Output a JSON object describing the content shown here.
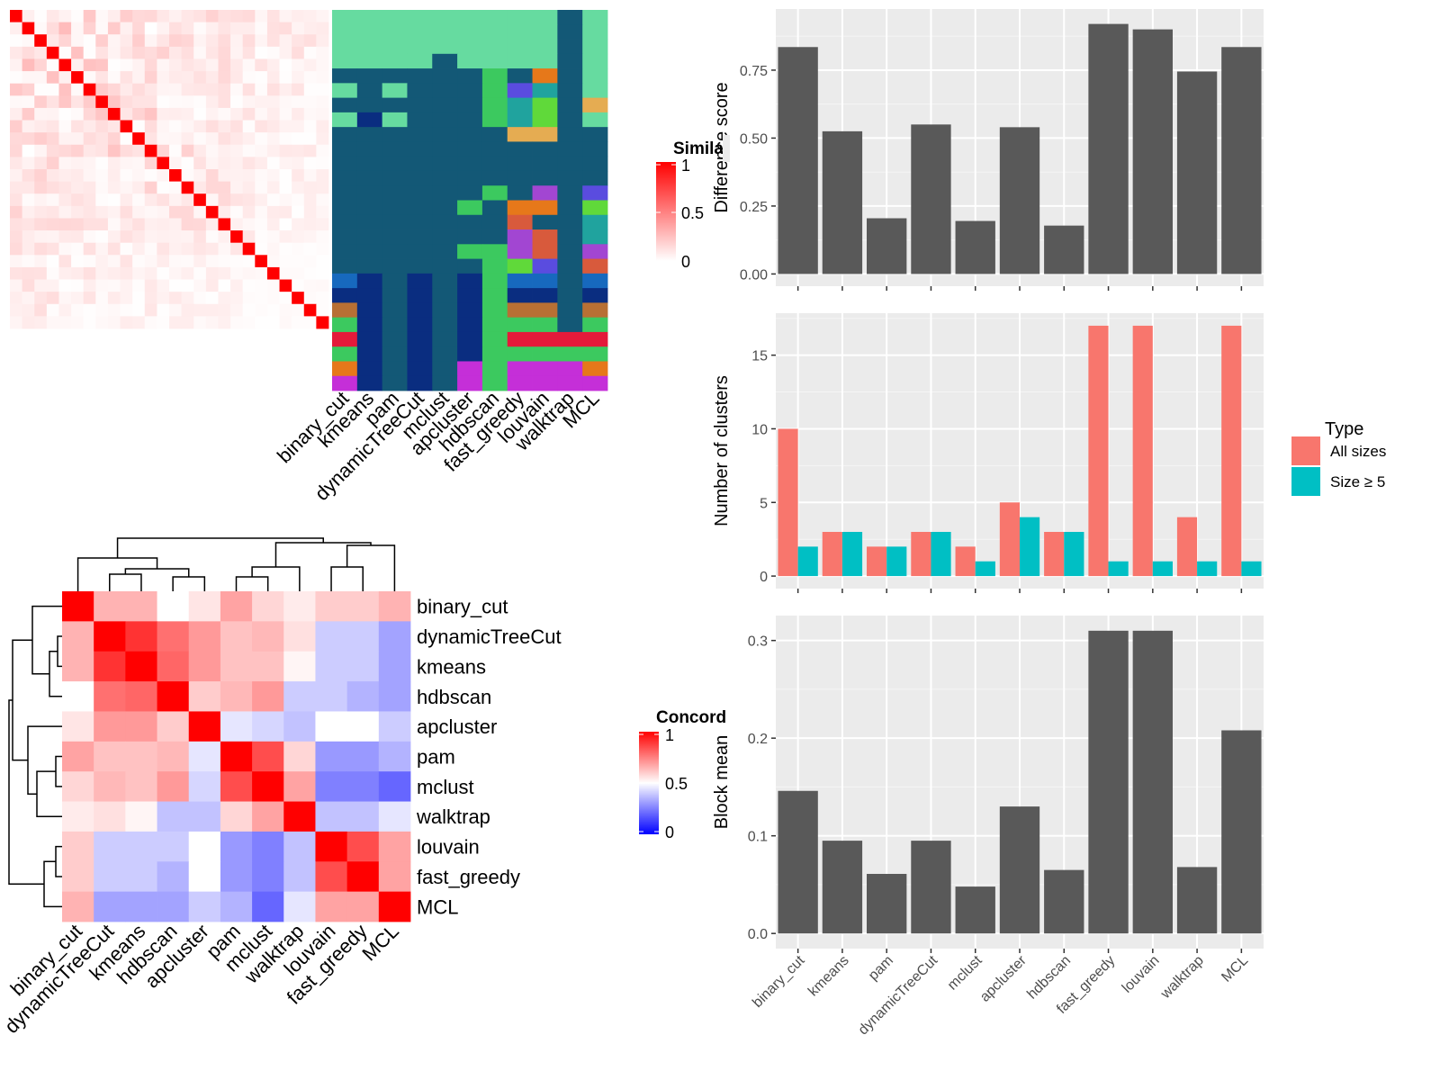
{
  "colors": {
    "panel_bg": "#ebebeb",
    "bar_dark": "#595959",
    "bar_all": "#f8766d",
    "bar_size5": "#00bfc4",
    "sim_high": "#ff0000",
    "conc_high": "#ff0000",
    "conc_mid": "#ffffff",
    "conc_low": "#0000ff"
  },
  "chart_data": [
    {
      "id": "similarity_heatmap",
      "type": "heatmap",
      "legend_title": "Simila",
      "legend_ticks": [
        "1",
        "0.5",
        "0"
      ],
      "n": 26,
      "max_offdiag": 0.25
    },
    {
      "id": "class_assignment",
      "type": "heatmap",
      "columns": [
        "binary_cut",
        "kmeans",
        "pam",
        "dynamicTreeCut",
        "mclust",
        "apcluster",
        "hdbscan",
        "fast_greedy",
        "louvain",
        "walktrap",
        "MCL"
      ],
      "palette": [
        "#66dba0",
        "#135876",
        "#0a2d80",
        "#3cc95f",
        "#e6781a",
        "#5a4cdf",
        "#20a39e",
        "#60d93a",
        "#e5ac52",
        "#a246d2",
        "#d85a3c",
        "#1769be",
        "#b87034",
        "#e41a3a",
        "#c52fd8"
      ],
      "rows": [
        [
          0,
          0,
          0,
          0,
          0,
          0,
          0,
          0,
          0,
          1,
          0
        ],
        [
          0,
          0,
          0,
          0,
          0,
          0,
          0,
          0,
          0,
          1,
          0
        ],
        [
          0,
          0,
          0,
          0,
          0,
          0,
          0,
          0,
          0,
          1,
          0
        ],
        [
          0,
          0,
          0,
          0,
          1,
          0,
          0,
          0,
          0,
          1,
          0
        ],
        [
          1,
          1,
          1,
          1,
          1,
          1,
          3,
          1,
          4,
          1,
          0
        ],
        [
          0,
          1,
          0,
          1,
          1,
          1,
          3,
          5,
          6,
          1,
          0
        ],
        [
          1,
          1,
          1,
          1,
          1,
          1,
          3,
          6,
          7,
          1,
          8
        ],
        [
          0,
          2,
          0,
          1,
          1,
          1,
          3,
          6,
          7,
          1,
          0
        ],
        [
          1,
          1,
          1,
          1,
          1,
          1,
          1,
          8,
          8,
          1,
          1
        ],
        [
          1,
          1,
          1,
          1,
          1,
          1,
          1,
          1,
          1,
          1,
          1
        ],
        [
          1,
          1,
          1,
          1,
          1,
          1,
          1,
          1,
          1,
          1,
          1
        ],
        [
          1,
          1,
          1,
          1,
          1,
          1,
          1,
          1,
          1,
          1,
          1
        ],
        [
          1,
          1,
          1,
          1,
          1,
          1,
          3,
          1,
          9,
          1,
          5
        ],
        [
          1,
          1,
          1,
          1,
          1,
          3,
          1,
          4,
          4,
          1,
          7
        ],
        [
          1,
          1,
          1,
          1,
          1,
          1,
          1,
          10,
          1,
          1,
          6
        ],
        [
          1,
          1,
          1,
          1,
          1,
          1,
          1,
          9,
          10,
          1,
          6
        ],
        [
          1,
          1,
          1,
          1,
          1,
          3,
          3,
          9,
          10,
          1,
          9
        ],
        [
          1,
          1,
          1,
          1,
          1,
          1,
          3,
          7,
          5,
          1,
          10
        ],
        [
          11,
          2,
          1,
          2,
          1,
          2,
          3,
          11,
          11,
          1,
          11
        ],
        [
          2,
          2,
          1,
          2,
          1,
          2,
          3,
          2,
          2,
          1,
          2
        ],
        [
          12,
          2,
          1,
          2,
          1,
          2,
          3,
          12,
          12,
          1,
          12
        ],
        [
          3,
          2,
          1,
          2,
          1,
          2,
          3,
          3,
          3,
          1,
          3
        ],
        [
          13,
          2,
          1,
          2,
          1,
          2,
          3,
          13,
          13,
          13,
          13
        ],
        [
          3,
          2,
          1,
          2,
          1,
          2,
          3,
          3,
          3,
          3,
          3
        ],
        [
          4,
          2,
          1,
          2,
          1,
          14,
          3,
          14,
          14,
          14,
          4
        ],
        [
          14,
          2,
          1,
          2,
          1,
          14,
          3,
          14,
          14,
          14,
          14
        ]
      ]
    },
    {
      "id": "concordance_heatmap",
      "type": "heatmap",
      "legend_title": "Concord",
      "legend_ticks": [
        "1",
        "0.5",
        "0"
      ],
      "rows": [
        "binary_cut",
        "dynamicTreeCut",
        "kmeans",
        "hdbscan",
        "apcluster",
        "pam",
        "mclust",
        "walktrap",
        "louvain",
        "fast_greedy",
        "MCL"
      ],
      "columns": [
        "binary_cut",
        "dynamicTreeCut",
        "kmeans",
        "hdbscan",
        "apcluster",
        "pam",
        "mclust",
        "walktrap",
        "louvain",
        "fast_greedy",
        "MCL"
      ],
      "values": [
        [
          1.0,
          0.65,
          0.65,
          0.5,
          0.55,
          0.68,
          0.58,
          0.54,
          0.6,
          0.6,
          0.65
        ],
        [
          0.65,
          1.0,
          0.9,
          0.78,
          0.7,
          0.62,
          0.64,
          0.56,
          0.4,
          0.4,
          0.32
        ],
        [
          0.65,
          0.9,
          1.0,
          0.8,
          0.7,
          0.62,
          0.62,
          0.52,
          0.4,
          0.4,
          0.32
        ],
        [
          0.5,
          0.78,
          0.8,
          1.0,
          0.6,
          0.64,
          0.7,
          0.4,
          0.4,
          0.35,
          0.32
        ],
        [
          0.55,
          0.7,
          0.7,
          0.6,
          1.0,
          0.45,
          0.42,
          0.38,
          0.5,
          0.5,
          0.4
        ],
        [
          0.68,
          0.62,
          0.62,
          0.64,
          0.45,
          1.0,
          0.85,
          0.58,
          0.3,
          0.3,
          0.35
        ],
        [
          0.58,
          0.64,
          0.62,
          0.7,
          0.42,
          0.85,
          1.0,
          0.68,
          0.25,
          0.25,
          0.2
        ],
        [
          0.54,
          0.56,
          0.52,
          0.38,
          0.38,
          0.58,
          0.68,
          1.0,
          0.38,
          0.38,
          0.45
        ],
        [
          0.6,
          0.4,
          0.4,
          0.4,
          0.5,
          0.3,
          0.25,
          0.38,
          1.0,
          0.85,
          0.68
        ],
        [
          0.6,
          0.4,
          0.4,
          0.35,
          0.5,
          0.3,
          0.25,
          0.38,
          0.85,
          1.0,
          0.68
        ],
        [
          0.65,
          0.32,
          0.32,
          0.32,
          0.4,
          0.35,
          0.2,
          0.45,
          0.68,
          0.68,
          1.0
        ]
      ]
    },
    {
      "id": "difference_score",
      "type": "bar",
      "categories": [
        "binary_cut",
        "kmeans",
        "pam",
        "dynamicTreeCut",
        "mclust",
        "apcluster",
        "hdbscan",
        "fast_greedy",
        "louvain",
        "walktrap",
        "MCL"
      ],
      "values": [
        0.835,
        0.525,
        0.205,
        0.55,
        0.195,
        0.54,
        0.178,
        0.92,
        0.9,
        0.745,
        0.835
      ],
      "ylabel": "Difference score",
      "ylim": [
        -0.045,
        0.975
      ],
      "yticks": [
        0,
        0.25,
        0.5,
        0.75
      ],
      "ytick_labels": [
        "0.00",
        "0.25",
        "0.50",
        "0.75"
      ]
    },
    {
      "id": "number_of_clusters",
      "type": "bar",
      "categories": [
        "binary_cut",
        "kmeans",
        "pam",
        "dynamicTreeCut",
        "mclust",
        "apcluster",
        "hdbscan",
        "fast_greedy",
        "louvain",
        "walktrap",
        "MCL"
      ],
      "series": [
        {
          "name": "All sizes",
          "values": [
            10,
            3,
            2,
            3,
            2,
            5,
            3,
            17,
            17,
            4,
            17
          ]
        },
        {
          "name": "Size ≥ 5",
          "values": [
            2,
            3,
            2,
            3,
            1,
            4,
            3,
            1,
            1,
            1,
            1
          ]
        }
      ],
      "ylabel": "Number of clusters",
      "ylim": [
        -0.85,
        17.85
      ],
      "yticks": [
        0,
        5,
        10,
        15
      ],
      "ytick_labels": [
        "0",
        "5",
        "10",
        "15"
      ],
      "legend_title": "Type",
      "legend_position": "right"
    },
    {
      "id": "block_mean",
      "type": "bar",
      "categories": [
        "binary_cut",
        "kmeans",
        "pam",
        "dynamicTreeCut",
        "mclust",
        "apcluster",
        "hdbscan",
        "fast_greedy",
        "louvain",
        "walktrap",
        "MCL"
      ],
      "values": [
        0.146,
        0.095,
        0.061,
        0.095,
        0.048,
        0.13,
        0.065,
        0.31,
        0.31,
        0.068,
        0.208
      ],
      "ylabel": "Block mean",
      "ylim": [
        -0.0155,
        0.3255
      ],
      "yticks": [
        0,
        0.1,
        0.2,
        0.3
      ],
      "ytick_labels": [
        "0.0",
        "0.1",
        "0.2",
        "0.3"
      ]
    }
  ]
}
